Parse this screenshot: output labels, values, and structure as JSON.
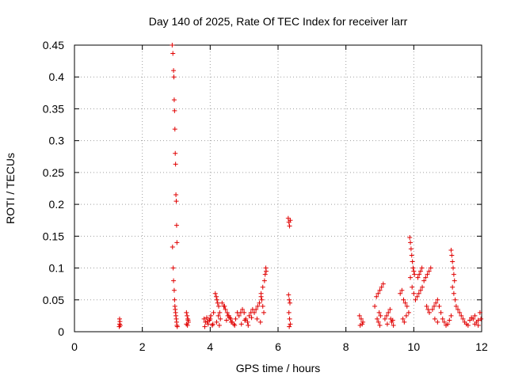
{
  "chart_data": {
    "type": "scatter",
    "title": "Day 140 of 2025, Rate Of TEC Index for receiver larr",
    "xlabel": "GPS time / hours",
    "ylabel": "ROTI / TECUs",
    "xlim": [
      0,
      12
    ],
    "ylim": [
      0,
      0.45
    ],
    "xticks": [
      0,
      2,
      4,
      6,
      8,
      10,
      12
    ],
    "xtick_labels": [
      "0",
      "2",
      "4",
      "6",
      "8",
      "10",
      "12"
    ],
    "yticks": [
      0,
      0.05,
      0.1,
      0.15,
      0.2,
      0.25,
      0.3,
      0.35,
      0.4,
      0.45
    ],
    "ytick_labels": [
      "0",
      "0.05",
      "0.1",
      "0.15",
      "0.2",
      "0.25",
      "0.3",
      "0.35",
      "0.4",
      "0.45"
    ],
    "grid": true,
    "marker": "+",
    "color": "#e00000",
    "series": [
      {
        "name": "ROTI",
        "x": [
          1.32,
          1.33,
          1.34,
          1.33,
          1.35,
          2.88,
          2.9,
          2.92,
          2.93,
          2.94,
          2.95,
          2.96,
          2.97,
          2.98,
          2.99,
          3.0,
          3.01,
          3.02,
          2.89,
          2.91,
          2.92,
          2.94,
          2.95,
          2.96,
          2.97,
          2.98,
          2.99,
          3.0,
          3.01,
          3.02,
          3.03,
          3.3,
          3.32,
          3.34,
          3.36,
          3.3,
          3.33,
          3.35,
          3.82,
          3.86,
          3.9,
          3.94,
          3.98,
          4.02,
          4.06,
          4.1,
          3.84,
          3.92,
          4.0,
          4.08,
          4.15,
          4.18,
          4.2,
          4.22,
          4.25,
          4.28,
          4.3,
          4.19,
          4.24,
          4.27,
          4.35,
          4.4,
          4.45,
          4.5,
          4.55,
          4.6,
          4.65,
          4.7,
          4.75,
          4.8,
          4.42,
          4.52,
          4.62,
          4.72,
          4.48,
          4.58,
          4.85,
          4.9,
          4.95,
          5.0,
          5.05,
          5.1,
          5.15,
          5.2,
          5.25,
          4.92,
          5.02,
          5.12,
          5.22,
          5.3,
          5.35,
          5.4,
          5.45,
          5.5,
          5.55,
          5.6,
          5.38,
          5.48,
          5.58,
          5.62,
          5.64,
          5.65,
          5.5,
          5.52,
          5.55,
          6.3,
          6.32,
          6.34,
          6.36,
          6.31,
          6.33,
          6.35,
          6.32,
          6.34,
          6.36,
          6.33,
          8.4,
          8.45,
          8.5,
          8.42,
          8.48,
          8.85,
          8.9,
          8.95,
          9.0,
          9.05,
          9.1,
          8.92,
          8.96,
          9.0,
          8.98,
          9.02,
          9.15,
          9.2,
          9.25,
          9.3,
          9.35,
          9.4,
          9.22,
          9.32,
          9.38,
          9.6,
          9.65,
          9.7,
          9.75,
          9.8,
          9.85,
          9.68,
          9.72,
          9.78,
          9.88,
          9.9,
          9.92,
          9.94,
          9.96,
          9.98,
          10.0,
          10.02,
          9.9,
          9.95,
          10.0,
          10.05,
          10.1,
          10.15,
          10.2,
          10.25,
          10.3,
          10.12,
          10.16,
          10.2,
          10.24,
          10.35,
          10.4,
          10.45,
          10.5,
          10.38,
          10.42,
          10.46,
          10.55,
          10.6,
          10.65,
          10.7,
          10.75,
          10.8,
          10.62,
          10.7,
          10.85,
          10.9,
          10.95,
          11.0,
          11.05,
          11.1,
          11.1,
          11.12,
          11.14,
          11.16,
          11.18,
          11.2,
          11.14,
          11.18,
          11.22,
          11.25,
          11.3,
          11.35,
          11.4,
          11.45,
          11.5,
          11.55,
          11.6,
          11.65,
          11.7,
          11.75,
          11.8,
          11.85,
          11.9,
          11.95,
          11.98,
          11.8,
          11.9
        ],
        "y": [
          0.008,
          0.012,
          0.016,
          0.02,
          0.01,
          0.45,
          0.437,
          0.41,
          0.4,
          0.364,
          0.347,
          0.318,
          0.28,
          0.263,
          0.215,
          0.205,
          0.167,
          0.14,
          0.133,
          0.1,
          0.08,
          0.065,
          0.05,
          0.04,
          0.035,
          0.03,
          0.025,
          0.02,
          0.015,
          0.01,
          0.008,
          0.03,
          0.025,
          0.02,
          0.015,
          0.012,
          0.01,
          0.018,
          0.02,
          0.015,
          0.022,
          0.012,
          0.018,
          0.025,
          0.01,
          0.03,
          0.008,
          0.016,
          0.02,
          0.012,
          0.06,
          0.055,
          0.05,
          0.045,
          0.04,
          0.03,
          0.02,
          0.015,
          0.025,
          0.01,
          0.045,
          0.04,
          0.035,
          0.03,
          0.025,
          0.02,
          0.015,
          0.012,
          0.02,
          0.03,
          0.04,
          0.025,
          0.015,
          0.01,
          0.018,
          0.022,
          0.025,
          0.03,
          0.035,
          0.03,
          0.02,
          0.015,
          0.025,
          0.03,
          0.035,
          0.012,
          0.018,
          0.01,
          0.022,
          0.03,
          0.035,
          0.04,
          0.045,
          0.055,
          0.07,
          0.08,
          0.02,
          0.015,
          0.03,
          0.09,
          0.1,
          0.095,
          0.06,
          0.05,
          0.04,
          0.178,
          0.172,
          0.166,
          0.175,
          0.058,
          0.05,
          0.045,
          0.03,
          0.02,
          0.012,
          0.008,
          0.025,
          0.02,
          0.015,
          0.01,
          0.012,
          0.04,
          0.055,
          0.06,
          0.065,
          0.07,
          0.075,
          0.02,
          0.015,
          0.01,
          0.03,
          0.025,
          0.02,
          0.025,
          0.03,
          0.035,
          0.015,
          0.01,
          0.012,
          0.02,
          0.018,
          0.06,
          0.065,
          0.05,
          0.045,
          0.04,
          0.03,
          0.02,
          0.015,
          0.025,
          0.148,
          0.14,
          0.13,
          0.12,
          0.11,
          0.1,
          0.095,
          0.09,
          0.085,
          0.07,
          0.06,
          0.05,
          0.055,
          0.06,
          0.065,
          0.07,
          0.08,
          0.085,
          0.09,
          0.095,
          0.1,
          0.085,
          0.09,
          0.095,
          0.1,
          0.04,
          0.035,
          0.03,
          0.035,
          0.04,
          0.045,
          0.05,
          0.04,
          0.03,
          0.02,
          0.015,
          0.02,
          0.015,
          0.01,
          0.012,
          0.018,
          0.025,
          0.128,
          0.12,
          0.11,
          0.1,
          0.09,
          0.08,
          0.07,
          0.06,
          0.05,
          0.04,
          0.035,
          0.03,
          0.025,
          0.02,
          0.015,
          0.012,
          0.01,
          0.018,
          0.022,
          0.02,
          0.025,
          0.015,
          0.01,
          0.03,
          0.02,
          0.012,
          0.018
        ]
      }
    ]
  }
}
